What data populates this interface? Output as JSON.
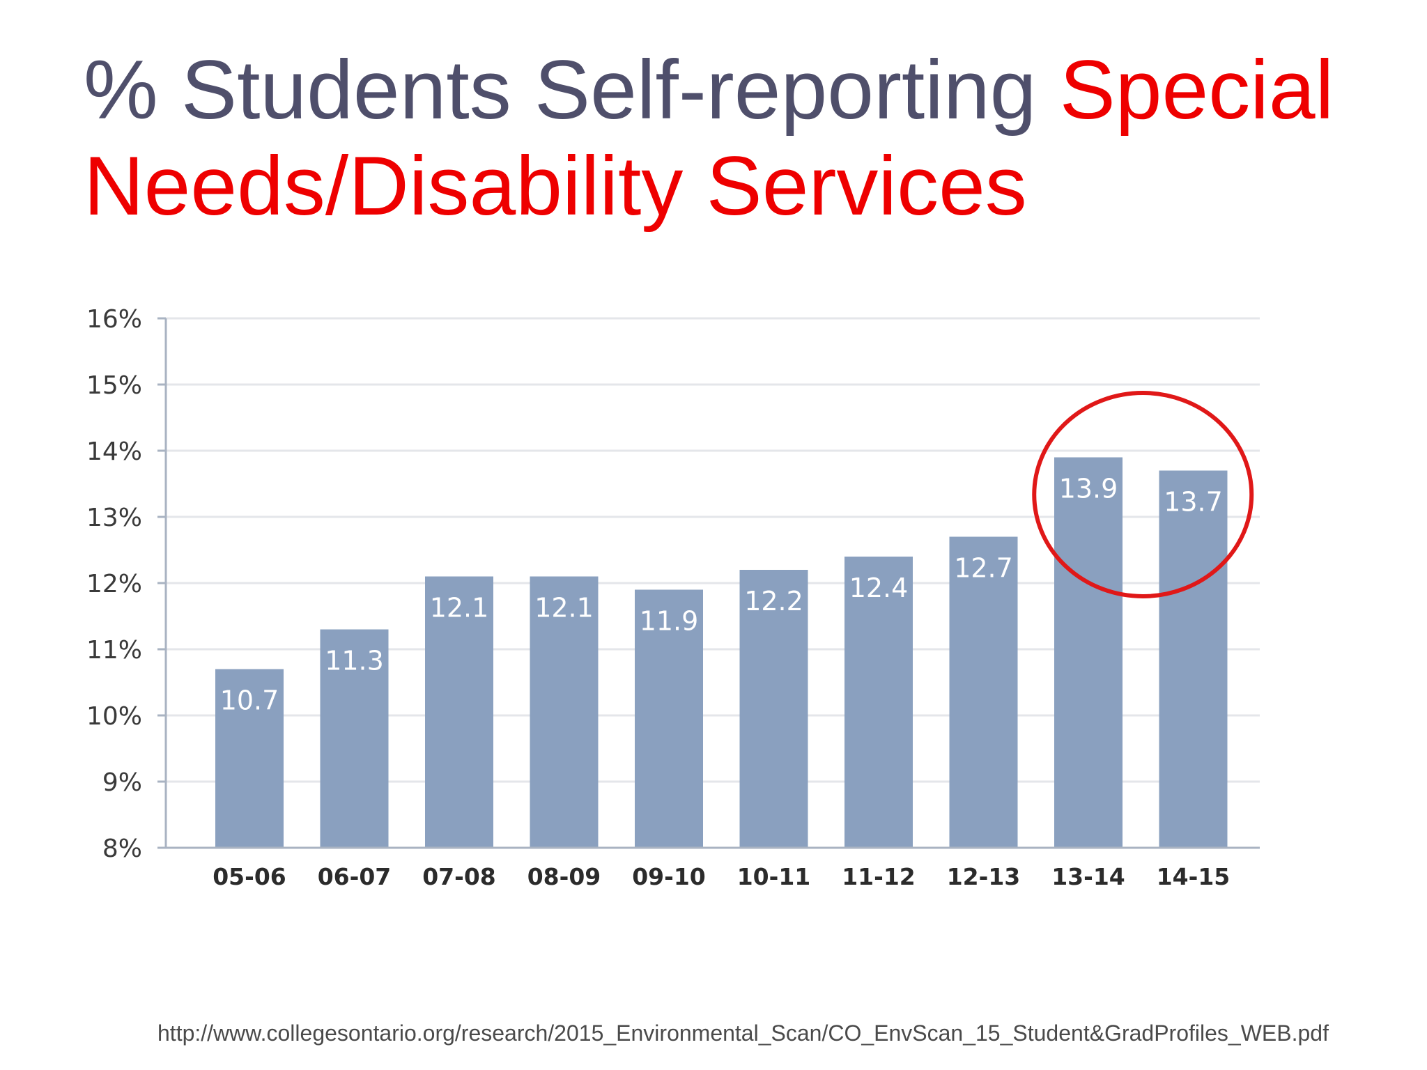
{
  "title": {
    "part_dark": "% Students Self-reporting ",
    "part_red_line1": "Special",
    "part_red_line2": "Needs/Disability Services"
  },
  "colors": {
    "title_dark": "#4f4f6b",
    "title_red": "#ee0000",
    "bar": "#8aa0bf",
    "highlight_circle": "#e01818",
    "grid": "#e4e6ea",
    "axis": "#a9b3c2"
  },
  "chart_data": {
    "type": "bar",
    "categories": [
      "05-06",
      "06-07",
      "07-08",
      "08-09",
      "09-10",
      "10-11",
      "11-12",
      "12-13",
      "13-14",
      "14-15"
    ],
    "values": [
      10.7,
      11.3,
      12.1,
      12.1,
      11.9,
      12.2,
      12.4,
      12.7,
      13.9,
      13.7
    ],
    "data_labels": [
      "10.7",
      "11.3",
      "12.1",
      "12.1",
      "11.9",
      "12.2",
      "12.4",
      "12.7",
      "13.9",
      "13.7"
    ],
    "ylim": [
      8,
      16
    ],
    "yticks": [
      8,
      9,
      10,
      11,
      12,
      13,
      14,
      15,
      16
    ],
    "ytick_labels": [
      "8%",
      "9%",
      "10%",
      "11%",
      "12%",
      "13%",
      "14%",
      "15%",
      "16%"
    ],
    "grid": true,
    "legend": "none",
    "highlighted_categories": [
      "13-14",
      "14-15"
    ],
    "xlabel": "",
    "ylabel": ""
  },
  "source_url": "http://www.collegesontario.org/research/2015_Environmental_Scan/CO_EnvScan_15_Student&GradProfiles_WEB.pdf"
}
